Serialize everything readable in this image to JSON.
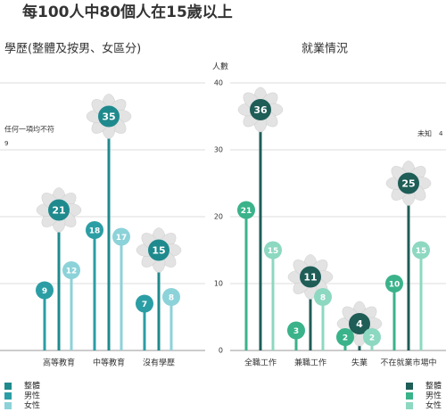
{
  "title": "每100人中80個人在15歲以上",
  "chart_data": [
    {
      "type": "flower",
      "title": "學歷(整體及按男、女區分)",
      "categories": [
        "高等教育",
        "中等教育",
        "沒有學歷"
      ],
      "series": [
        {
          "name": "整體",
          "color": "#1f8a8d",
          "values": [
            21,
            35,
            15
          ]
        },
        {
          "name": "男性",
          "color": "#2b9ea5",
          "values": [
            9,
            18,
            7
          ]
        },
        {
          "name": "女性",
          "color": "#8cd2d9",
          "values": [
            12,
            17,
            8
          ]
        }
      ],
      "ylim": [
        0,
        40
      ],
      "yticks": [
        0,
        10,
        20,
        30,
        40
      ],
      "grid": true,
      "tick_labels": false,
      "annotation": {
        "text": "任何一項均不符",
        "value": 9
      }
    },
    {
      "type": "flower",
      "title": "就業情況",
      "ylabel": "人數",
      "categories": [
        "全職工作",
        "兼職工作",
        "失業",
        "不在就業市場中"
      ],
      "series": [
        {
          "name": "整體",
          "color": "#1f5d57",
          "values": [
            36,
            11,
            4,
            25
          ]
        },
        {
          "name": "男性",
          "color": "#3ab38a",
          "values": [
            21,
            3,
            2,
            10
          ]
        },
        {
          "name": "女性",
          "color": "#8dd8c0",
          "values": [
            15,
            8,
            2,
            15
          ]
        }
      ],
      "ylim": [
        0,
        40
      ],
      "yticks": [
        0,
        10,
        20,
        30,
        40
      ],
      "grid": true,
      "tick_labels": true,
      "annotation": {
        "text": "未知",
        "value": 4
      }
    }
  ]
}
